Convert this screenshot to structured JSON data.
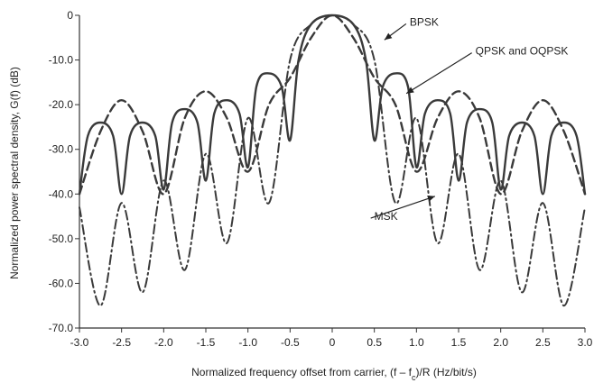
{
  "chart_data": {
    "type": "line",
    "xlabel": "Normalized frequency offset from carrier, (f – f",
    "xlabel_sub": "c",
    "xlabel_tail": ")/R (Hz/bit/s)",
    "ylabel": "Normalized power spectral density, G(f) (dB)",
    "xlim": [
      -3.0,
      3.0
    ],
    "ylim": [
      -70,
      0
    ],
    "x_ticks": [
      -3.0,
      -2.5,
      -2.0,
      -1.5,
      -1.0,
      -0.5,
      0,
      0.5,
      1.0,
      1.5,
      2.0,
      2.5,
      3.0
    ],
    "x_tick_labels": [
      "-3.0",
      "-2.5",
      "-2.0",
      "-1.5",
      "-1.0",
      "-0.5",
      "0",
      "0.5",
      "1.0",
      "1.5",
      "2.0",
      "2.5",
      "3.0"
    ],
    "y_ticks": [
      0,
      -10,
      -20,
      -30,
      -40,
      -50,
      -60,
      -70
    ],
    "y_tick_labels": [
      "0",
      "-10.0",
      "-20.0",
      "-30.0",
      "-40.0",
      "-50.0",
      "-60.0",
      "-70.0"
    ],
    "grid": false,
    "series": [
      {
        "name": "BPSK",
        "style": "dashed",
        "points": [
          [
            -3.0,
            -40
          ],
          [
            -2.75,
            -26
          ],
          [
            -2.5,
            -19
          ],
          [
            -2.25,
            -26
          ],
          [
            -2.0,
            -40
          ],
          [
            -1.75,
            -23
          ],
          [
            -1.5,
            -17
          ],
          [
            -1.25,
            -23
          ],
          [
            -1.0,
            -35
          ],
          [
            -0.75,
            -20
          ],
          [
            -0.5,
            -14
          ],
          [
            -0.25,
            -5
          ],
          [
            0,
            0
          ],
          [
            0.25,
            -5
          ],
          [
            0.5,
            -14
          ],
          [
            0.75,
            -20
          ],
          [
            1.0,
            -35
          ],
          [
            1.25,
            -23
          ],
          [
            1.5,
            -17
          ],
          [
            1.75,
            -23
          ],
          [
            2.0,
            -40
          ],
          [
            2.25,
            -26
          ],
          [
            2.5,
            -19
          ],
          [
            2.75,
            -26
          ],
          [
            3.0,
            -40
          ]
        ]
      },
      {
        "name": "QPSK and OQPSK",
        "style": "solid",
        "points": [
          [
            -3.0,
            -40
          ],
          [
            -2.9,
            -27
          ],
          [
            -2.75,
            -24
          ],
          [
            -2.6,
            -27
          ],
          [
            -2.5,
            -40
          ],
          [
            -2.4,
            -27
          ],
          [
            -2.25,
            -24
          ],
          [
            -2.1,
            -27
          ],
          [
            -2.0,
            -39
          ],
          [
            -1.9,
            -24
          ],
          [
            -1.75,
            -21
          ],
          [
            -1.6,
            -24
          ],
          [
            -1.5,
            -37
          ],
          [
            -1.4,
            -22
          ],
          [
            -1.25,
            -19
          ],
          [
            -1.1,
            -22
          ],
          [
            -1.0,
            -34
          ],
          [
            -0.9,
            -16
          ],
          [
            -0.75,
            -13
          ],
          [
            -0.6,
            -16
          ],
          [
            -0.5,
            -28
          ],
          [
            -0.4,
            -10
          ],
          [
            -0.25,
            -2
          ],
          [
            0,
            0
          ],
          [
            0.25,
            -2
          ],
          [
            0.4,
            -10
          ],
          [
            0.5,
            -28
          ],
          [
            0.6,
            -16
          ],
          [
            0.75,
            -13
          ],
          [
            0.9,
            -16
          ],
          [
            1.0,
            -34
          ],
          [
            1.1,
            -22
          ],
          [
            1.25,
            -19
          ],
          [
            1.4,
            -22
          ],
          [
            1.5,
            -37
          ],
          [
            1.6,
            -24
          ],
          [
            1.75,
            -21
          ],
          [
            1.9,
            -24
          ],
          [
            2.0,
            -39
          ],
          [
            2.1,
            -27
          ],
          [
            2.25,
            -24
          ],
          [
            2.4,
            -27
          ],
          [
            2.5,
            -40
          ],
          [
            2.6,
            -27
          ],
          [
            2.75,
            -24
          ],
          [
            2.9,
            -27
          ],
          [
            3.0,
            -40
          ]
        ]
      },
      {
        "name": "MSK",
        "style": "dash-dot",
        "points": [
          [
            -3.0,
            -43
          ],
          [
            -2.75,
            -65
          ],
          [
            -2.5,
            -42
          ],
          [
            -2.25,
            -62
          ],
          [
            -2.0,
            -37
          ],
          [
            -1.75,
            -57
          ],
          [
            -1.5,
            -31
          ],
          [
            -1.25,
            -51
          ],
          [
            -1.0,
            -23
          ],
          [
            -0.75,
            -42
          ],
          [
            -0.5,
            -10
          ],
          [
            -0.25,
            -2
          ],
          [
            0,
            0
          ],
          [
            0.25,
            -2
          ],
          [
            0.5,
            -10
          ],
          [
            0.75,
            -42
          ],
          [
            1.0,
            -23
          ],
          [
            1.25,
            -51
          ],
          [
            1.5,
            -31
          ],
          [
            1.75,
            -57
          ],
          [
            2.0,
            -37
          ],
          [
            2.25,
            -62
          ],
          [
            2.5,
            -42
          ],
          [
            2.75,
            -65
          ],
          [
            3.0,
            -43
          ]
        ]
      }
    ],
    "annotations": [
      {
        "text": "BPSK",
        "x": 0.92,
        "y": -1.5,
        "arrow_to": [
          0.62,
          -5.5
        ]
      },
      {
        "text": "QPSK and OQPSK",
        "x": 1.7,
        "y": -8.0,
        "arrow_to": [
          0.88,
          -17.5
        ]
      },
      {
        "text": "MSK",
        "x": 0.5,
        "y": -45.0,
        "arrow_to": [
          1.22,
          -40.5
        ]
      }
    ]
  }
}
